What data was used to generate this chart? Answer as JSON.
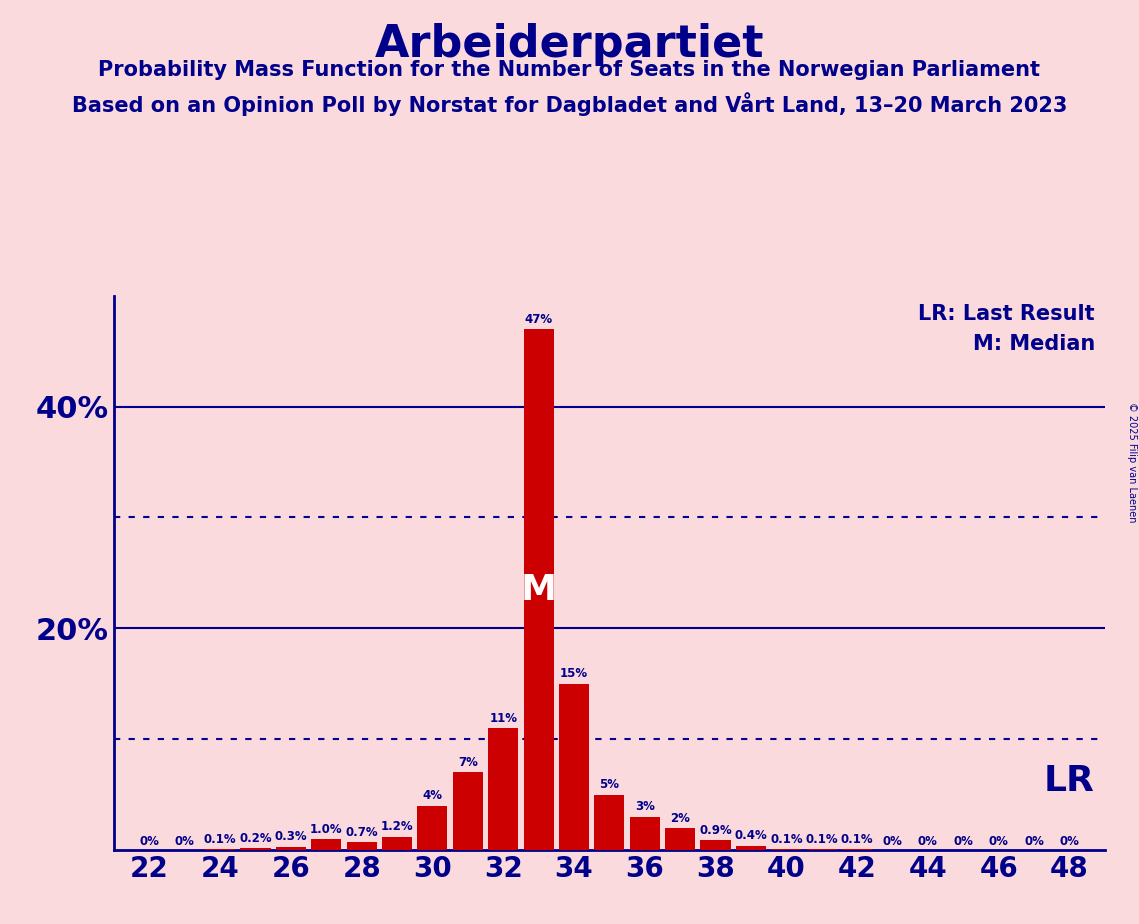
{
  "title": "Arbeiderpartiet",
  "subtitle1": "Probability Mass Function for the Number of Seats in the Norwegian Parliament",
  "subtitle2": "Based on an Opinion Poll by Norstat for Dagbladet and Vårt Land, 13–20 March 2023",
  "copyright": "© 2025 Filip van Laenen",
  "legend_lr": "LR: Last Result",
  "legend_m": "M: Median",
  "lr_label": "LR",
  "median_label": "M",
  "background_color": "#fadadd",
  "bar_color": "#cc0000",
  "title_color": "#00008b",
  "axis_color": "#00008b",
  "text_color": "#00008b",
  "seats": [
    22,
    23,
    24,
    25,
    26,
    27,
    28,
    29,
    30,
    31,
    32,
    33,
    34,
    35,
    36,
    37,
    38,
    39,
    40,
    41,
    42,
    43,
    44,
    45,
    46,
    47,
    48
  ],
  "probabilities": [
    0.0,
    0.0,
    0.1,
    0.2,
    0.3,
    1.0,
    0.7,
    1.2,
    4.0,
    7.0,
    11.0,
    47.0,
    15.0,
    5.0,
    3.0,
    2.0,
    0.9,
    0.4,
    0.1,
    0.1,
    0.1,
    0.0,
    0.0,
    0.0,
    0.0,
    0.0,
    0.0
  ],
  "prob_labels": [
    "0%",
    "0%",
    "0.1%",
    "0.2%",
    "0.3%",
    "1.0%",
    "0.7%",
    "1.2%",
    "4%",
    "7%",
    "11%",
    "47%",
    "15%",
    "5%",
    "3%",
    "2%",
    "0.9%",
    "0.4%",
    "0.1%",
    "0.1%",
    "0.1%",
    "0%",
    "0%",
    "0%",
    "0%",
    "0%",
    "0%"
  ],
  "median_seat": 33,
  "xlim": [
    21,
    49
  ],
  "ylim": [
    0,
    50
  ],
  "labeled_yticks": [
    20,
    40
  ],
  "ytick_labels": [
    "20%",
    "40%"
  ],
  "dotted_yticks": [
    10,
    30
  ],
  "solid_yticks": [
    20,
    40
  ],
  "figsize": [
    11.39,
    9.24
  ],
  "dpi": 100
}
